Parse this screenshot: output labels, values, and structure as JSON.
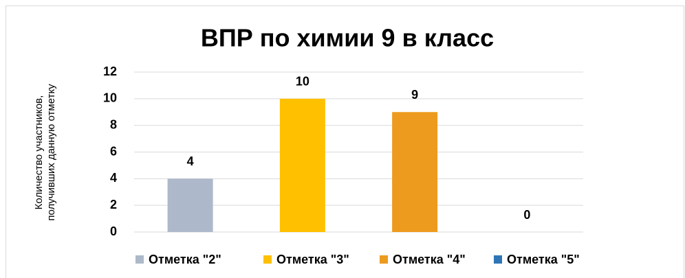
{
  "chart_data": {
    "type": "bar",
    "title": "ВПР по химии 9 в класс",
    "y_label": [
      "Количество участников,",
      "получивших данную отметку"
    ],
    "categories": [
      "Отметка \"2\"",
      "Отметка \"3\"",
      "Отметка \"4\"",
      "Отметка \"5\""
    ],
    "values": [
      4,
      10,
      9,
      0
    ],
    "colors": [
      "#adb9ca",
      "#ffc000",
      "#ed9b1e",
      "#2e75b6"
    ],
    "ylim": [
      0,
      12
    ],
    "yticks": [
      0,
      2,
      4,
      6,
      8,
      10,
      12
    ],
    "grid": true,
    "legend": "bottom"
  }
}
